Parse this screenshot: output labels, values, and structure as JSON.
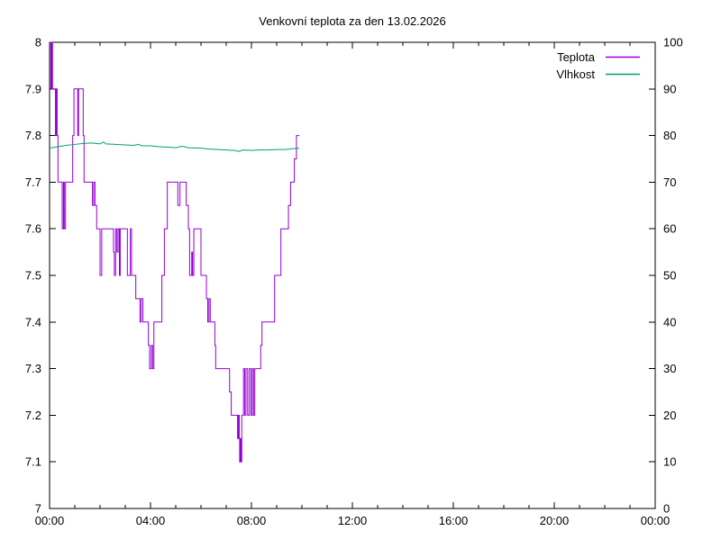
{
  "page": {
    "background": "#ffffff",
    "border_color": "#000000"
  },
  "chart_data": {
    "type": "line",
    "title": "Venkovní teplota za den 13.02.2026",
    "grid": false,
    "legend_position": "top-right-inside",
    "legend": [
      {
        "label": "Teplota",
        "color": "#9400D3"
      },
      {
        "label": "Vlhkost",
        "color": "#009E73"
      }
    ],
    "x_axis": {
      "unit": "time",
      "range_minutes": [
        0,
        1440
      ],
      "major_tick_every_minutes": 240,
      "minor_tick_every_minutes": 60,
      "tick_labels": [
        "00:00",
        "04:00",
        "08:00",
        "12:00",
        "16:00",
        "20:00",
        "00:00"
      ]
    },
    "y_axis_left": {
      "name": "temperature",
      "range": [
        7,
        8
      ],
      "tick_step": 0.1,
      "tick_labels": [
        "7",
        "7.1",
        "7.2",
        "7.3",
        "7.4",
        "7.5",
        "7.6",
        "7.7",
        "7.8",
        "7.9",
        "8"
      ]
    },
    "y_axis_right": {
      "name": "humidity",
      "range": [
        0,
        100
      ],
      "tick_step": 10,
      "tick_labels": [
        "0",
        "10",
        "20",
        "30",
        "40",
        "50",
        "60",
        "70",
        "80",
        "90",
        "100"
      ]
    },
    "series": [
      {
        "name": "Teplota",
        "axis": "left",
        "style": "steps",
        "color": "#9400D3",
        "points": [
          [
            "00:00",
            8.0
          ],
          [
            "00:03",
            7.9
          ],
          [
            "00:05",
            8.0
          ],
          [
            "00:07",
            7.9
          ],
          [
            "00:14",
            7.8
          ],
          [
            "00:16",
            7.9
          ],
          [
            "00:18",
            7.8
          ],
          [
            "00:20",
            7.7
          ],
          [
            "00:30",
            7.6
          ],
          [
            "00:33",
            7.7
          ],
          [
            "00:35",
            7.6
          ],
          [
            "00:38",
            7.7
          ],
          [
            "00:55",
            7.8
          ],
          [
            "00:58",
            7.9
          ],
          [
            "01:07",
            7.8
          ],
          [
            "01:09",
            7.9
          ],
          [
            "01:20",
            7.8
          ],
          [
            "01:22",
            7.7
          ],
          [
            "01:42",
            7.65
          ],
          [
            "01:45",
            7.7
          ],
          [
            "01:48",
            7.65
          ],
          [
            "01:52",
            7.6
          ],
          [
            "02:00",
            7.5
          ],
          [
            "02:04",
            7.6
          ],
          [
            "02:32",
            7.55
          ],
          [
            "02:34",
            7.5
          ],
          [
            "02:37",
            7.6
          ],
          [
            "02:40",
            7.55
          ],
          [
            "02:43",
            7.6
          ],
          [
            "02:46",
            7.5
          ],
          [
            "02:48",
            7.6
          ],
          [
            "03:05",
            7.5
          ],
          [
            "03:12",
            7.6
          ],
          [
            "03:15",
            7.5
          ],
          [
            "03:25",
            7.45
          ],
          [
            "03:35",
            7.4
          ],
          [
            "03:38",
            7.45
          ],
          [
            "03:42",
            7.4
          ],
          [
            "03:55",
            7.35
          ],
          [
            "03:58",
            7.3
          ],
          [
            "04:02",
            7.35
          ],
          [
            "04:05",
            7.3
          ],
          [
            "04:08",
            7.4
          ],
          [
            "04:27",
            7.5
          ],
          [
            "04:33",
            7.6
          ],
          [
            "04:40",
            7.7
          ],
          [
            "05:05",
            7.65
          ],
          [
            "05:10",
            7.7
          ],
          [
            "05:25",
            7.65
          ],
          [
            "05:30",
            7.6
          ],
          [
            "05:33",
            7.5
          ],
          [
            "05:38",
            7.55
          ],
          [
            "05:40",
            7.5
          ],
          [
            "05:43",
            7.6
          ],
          [
            "06:00",
            7.5
          ],
          [
            "06:13",
            7.45
          ],
          [
            "06:16",
            7.4
          ],
          [
            "06:19",
            7.45
          ],
          [
            "06:22",
            7.4
          ],
          [
            "06:33",
            7.35
          ],
          [
            "06:35",
            7.3
          ],
          [
            "07:08",
            7.25
          ],
          [
            "07:12",
            7.2
          ],
          [
            "07:27",
            7.15
          ],
          [
            "07:29",
            7.2
          ],
          [
            "07:31",
            7.15
          ],
          [
            "07:32",
            7.1
          ],
          [
            "07:34",
            7.15
          ],
          [
            "07:35",
            7.1
          ],
          [
            "07:37",
            7.2
          ],
          [
            "07:41",
            7.3
          ],
          [
            "07:44",
            7.2
          ],
          [
            "07:47",
            7.3
          ],
          [
            "07:51",
            7.2
          ],
          [
            "07:55",
            7.3
          ],
          [
            "07:59",
            7.2
          ],
          [
            "08:02",
            7.3
          ],
          [
            "08:05",
            7.2
          ],
          [
            "08:08",
            7.3
          ],
          [
            "08:22",
            7.35
          ],
          [
            "08:25",
            7.4
          ],
          [
            "08:55",
            7.5
          ],
          [
            "09:10",
            7.6
          ],
          [
            "09:28",
            7.65
          ],
          [
            "09:33",
            7.7
          ],
          [
            "09:42",
            7.75
          ],
          [
            "09:47",
            7.8
          ],
          [
            "09:54",
            7.8
          ]
        ]
      },
      {
        "name": "Vlhkost",
        "axis": "right",
        "style": "line",
        "color": "#009E73",
        "points": [
          [
            "00:00",
            77.3
          ],
          [
            "00:20",
            77.6
          ],
          [
            "00:40",
            77.9
          ],
          [
            "01:00",
            78.1
          ],
          [
            "01:20",
            78.3
          ],
          [
            "01:40",
            78.4
          ],
          [
            "02:00",
            78.2
          ],
          [
            "02:08",
            78.6
          ],
          [
            "02:14",
            78.2
          ],
          [
            "02:40",
            78.1
          ],
          [
            "03:00",
            78.0
          ],
          [
            "03:20",
            77.9
          ],
          [
            "03:30",
            78.1
          ],
          [
            "03:40",
            77.8
          ],
          [
            "04:00",
            77.8
          ],
          [
            "04:20",
            77.6
          ],
          [
            "04:40",
            77.5
          ],
          [
            "05:00",
            77.4
          ],
          [
            "05:15",
            77.7
          ],
          [
            "05:30",
            77.4
          ],
          [
            "06:00",
            77.3
          ],
          [
            "06:20",
            77.1
          ],
          [
            "06:40",
            77.0
          ],
          [
            "07:00",
            76.9
          ],
          [
            "07:20",
            76.8
          ],
          [
            "07:30",
            76.6
          ],
          [
            "07:40",
            76.9
          ],
          [
            "08:00",
            76.8
          ],
          [
            "08:20",
            76.9
          ],
          [
            "08:40",
            76.9
          ],
          [
            "09:00",
            77.0
          ],
          [
            "09:20",
            77.0
          ],
          [
            "09:40",
            77.2
          ],
          [
            "09:54",
            77.3
          ]
        ]
      }
    ]
  }
}
